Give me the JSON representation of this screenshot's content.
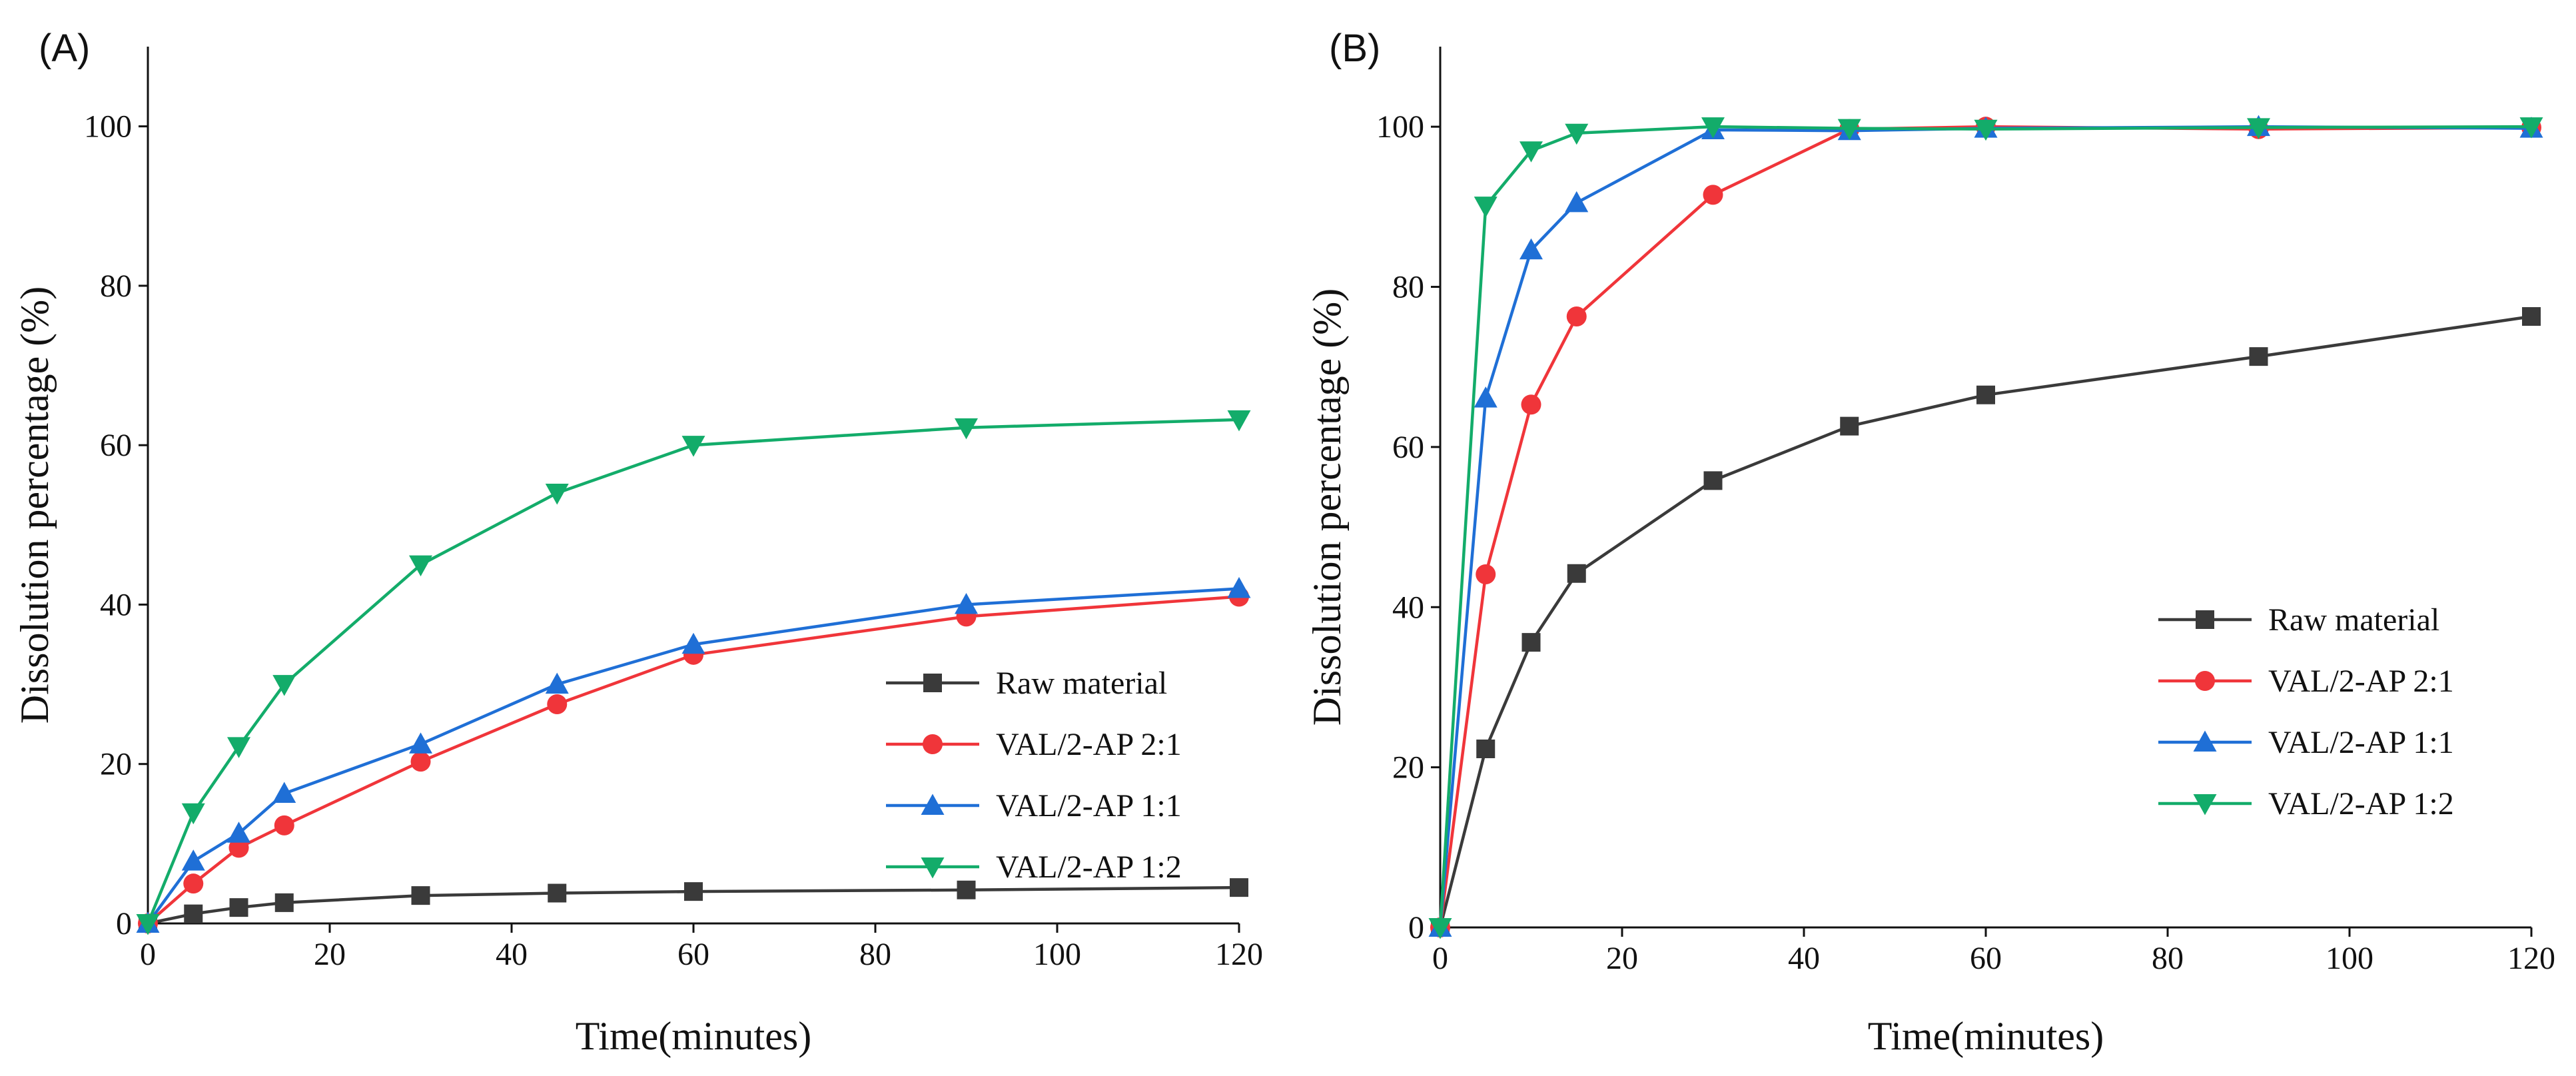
{
  "chart_data": [
    {
      "type": "line",
      "panel_label": "(A)",
      "xlabel": "Time(minutes)",
      "ylabel": "Dissolution percentage (%)",
      "xlim": [
        0,
        120
      ],
      "ylim": [
        0,
        110
      ],
      "xticks": [
        0,
        20,
        40,
        60,
        80,
        100,
        120
      ],
      "yticks": [
        0,
        20,
        40,
        60,
        80,
        100
      ],
      "grid": false,
      "legend_position": "lower-right",
      "x": [
        0,
        5,
        10,
        15,
        30,
        45,
        60,
        90,
        120
      ],
      "series": [
        {
          "name": "Raw material",
          "color": "#3a3a3a",
          "marker": "square",
          "values": [
            0,
            1.2,
            2.0,
            2.6,
            3.5,
            3.8,
            4.0,
            4.2,
            4.5
          ]
        },
        {
          "name": "VAL/2-AP 2:1",
          "color": "#f0353a",
          "marker": "circle",
          "values": [
            0,
            5.0,
            9.5,
            12.3,
            20.3,
            27.5,
            33.7,
            38.5,
            41.0
          ]
        },
        {
          "name": "VAL/2-AP 1:1",
          "color": "#1f6fd6",
          "marker": "triangle-up",
          "values": [
            0,
            7.8,
            11.3,
            16.3,
            22.5,
            30.0,
            35.0,
            40.0,
            42.0
          ]
        },
        {
          "name": "VAL/2-AP 1:2",
          "color": "#13ac6a",
          "marker": "triangle-down",
          "values": [
            0,
            13.9,
            22.2,
            30.0,
            45.0,
            54.0,
            60.0,
            62.2,
            63.2
          ]
        }
      ]
    },
    {
      "type": "line",
      "panel_label": "(B)",
      "xlabel": "Time(minutes)",
      "ylabel": "Dissolution percentage (%)",
      "xlim": [
        0,
        120
      ],
      "ylim": [
        0,
        110
      ],
      "xticks": [
        0,
        20,
        40,
        60,
        80,
        100,
        120
      ],
      "yticks": [
        0,
        20,
        40,
        60,
        80,
        100
      ],
      "grid": false,
      "legend_position": "center-right",
      "x": [
        0,
        5,
        10,
        15,
        30,
        45,
        60,
        90,
        120
      ],
      "series": [
        {
          "name": "Raw material",
          "color": "#3a3a3a",
          "marker": "square",
          "values": [
            0,
            22.3,
            35.6,
            44.2,
            55.8,
            62.6,
            66.5,
            71.3,
            76.3
          ]
        },
        {
          "name": "VAL/2-AP 2:1",
          "color": "#f0353a",
          "marker": "circle",
          "values": [
            0,
            44.1,
            65.3,
            76.3,
            91.5,
            99.7,
            100.0,
            99.7,
            99.9
          ]
        },
        {
          "name": "VAL/2-AP 1:1",
          "color": "#1f6fd6",
          "marker": "triangle-up",
          "values": [
            0,
            66.1,
            84.6,
            90.5,
            99.6,
            99.5,
            99.8,
            100.0,
            99.8
          ]
        },
        {
          "name": "VAL/2-AP 1:2",
          "color": "#13ac6a",
          "marker": "triangle-down",
          "values": [
            0,
            90.1,
            97.0,
            99.2,
            100.0,
            99.8,
            99.7,
            99.9,
            100.0
          ]
        }
      ]
    }
  ]
}
